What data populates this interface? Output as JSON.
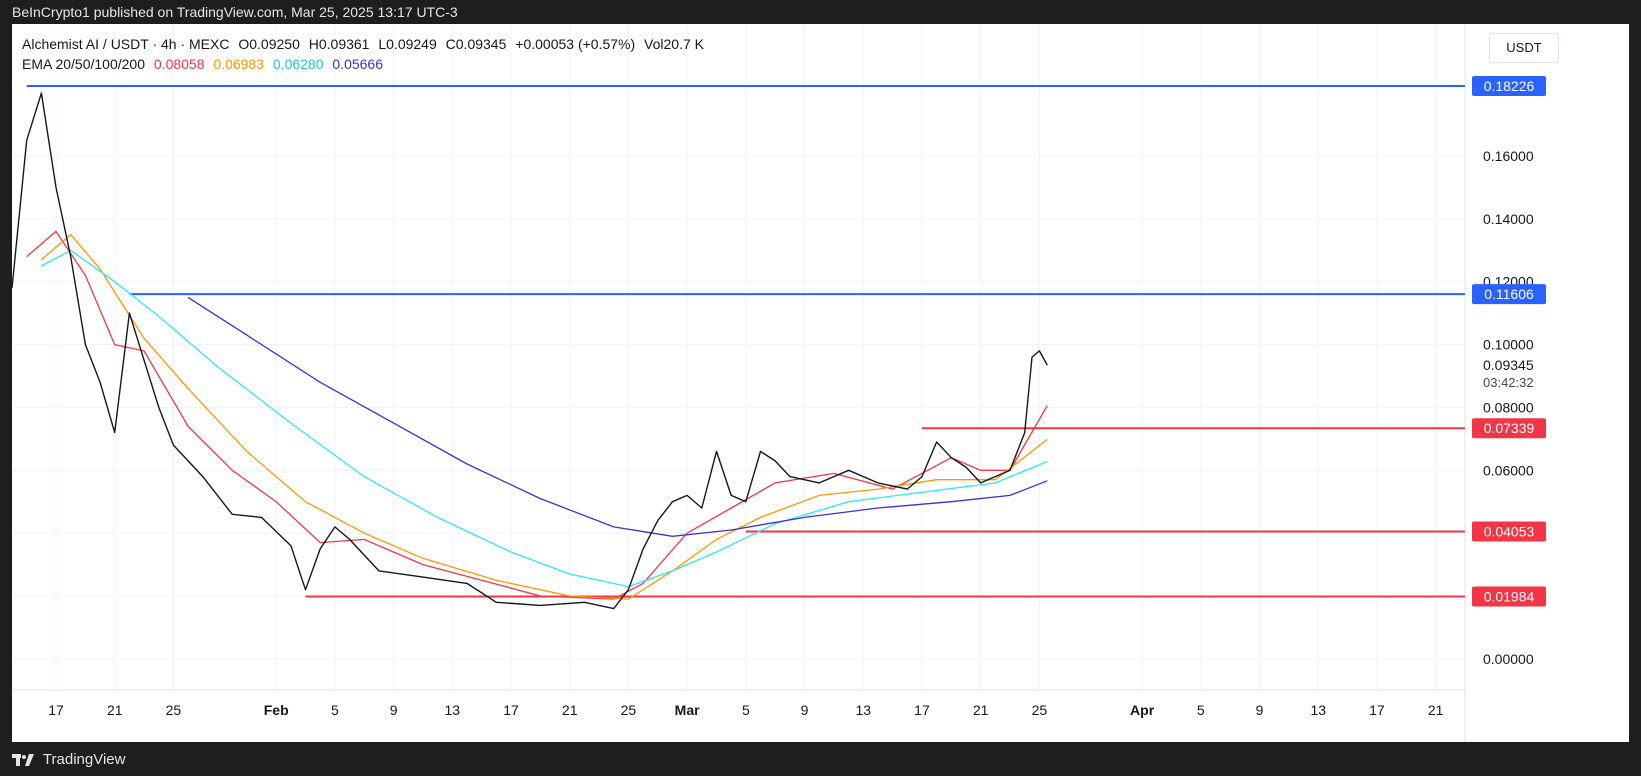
{
  "header": {
    "text": "BeInCrypto1 published on TradingView.com, Mar 25, 2025 13:17 UTC-3"
  },
  "legend": {
    "symbol": "Alchemist AI / USDT · 4h · MEXC",
    "open": "O0.09250",
    "high": "H0.09361",
    "low": "L0.09249",
    "close": "C0.09345",
    "change": "+0.00053 (+0.57%)",
    "volume": "Vol20.7 K",
    "ema_label": "EMA 20/50/100/200",
    "ema_values": [
      "0.08058",
      "0.06983",
      "0.06280",
      "0.05666"
    ]
  },
  "footer": {
    "brand": "TradingView"
  },
  "colors": {
    "ema20": "#f23645",
    "ema50": "#ff9800",
    "ema100": "#2ee8f2",
    "ema200": "#3f2fd6",
    "resistance": "#2962ff",
    "support": "#f23645",
    "candle": "#131722",
    "grid": "#f0f3fa"
  },
  "chart_data": {
    "type": "line",
    "title": "Alchemist AI / USDT · 4h · MEXC",
    "unit": "USDT",
    "xlim": [
      "2025-01-14",
      "2025-04-23"
    ],
    "ylim": [
      -0.008,
      0.188
    ],
    "y_ticks": [
      "0.00000",
      "0.02000",
      "0.04000",
      "0.06000",
      "0.08000",
      "0.10000",
      "0.12000",
      "0.14000",
      "0.16000"
    ],
    "x_ticks": [
      {
        "date": "2025-01-17",
        "label": "17"
      },
      {
        "date": "2025-01-21",
        "label": "21"
      },
      {
        "date": "2025-01-25",
        "label": "25"
      },
      {
        "date": "2025-02-01",
        "label": "Feb"
      },
      {
        "date": "2025-02-05",
        "label": "5"
      },
      {
        "date": "2025-02-09",
        "label": "9"
      },
      {
        "date": "2025-02-13",
        "label": "13"
      },
      {
        "date": "2025-02-17",
        "label": "17"
      },
      {
        "date": "2025-02-21",
        "label": "21"
      },
      {
        "date": "2025-02-25",
        "label": "25"
      },
      {
        "date": "2025-03-01",
        "label": "Mar"
      },
      {
        "date": "2025-03-05",
        "label": "5"
      },
      {
        "date": "2025-03-09",
        "label": "9"
      },
      {
        "date": "2025-03-13",
        "label": "13"
      },
      {
        "date": "2025-03-17",
        "label": "17"
      },
      {
        "date": "2025-03-21",
        "label": "21"
      },
      {
        "date": "2025-03-25",
        "label": "25"
      },
      {
        "date": "2025-04-01",
        "label": "Apr"
      },
      {
        "date": "2025-04-05",
        "label": "5"
      },
      {
        "date": "2025-04-09",
        "label": "9"
      },
      {
        "date": "2025-04-13",
        "label": "13"
      },
      {
        "date": "2025-04-17",
        "label": "17"
      },
      {
        "date": "2025-04-21",
        "label": "21"
      }
    ],
    "price": [
      [
        "2025-01-14",
        0.118
      ],
      [
        "2025-01-15",
        0.165
      ],
      [
        "2025-01-16",
        0.18
      ],
      [
        "2025-01-17",
        0.15
      ],
      [
        "2025-01-18",
        0.128
      ],
      [
        "2025-01-19",
        0.1
      ],
      [
        "2025-01-20",
        0.088
      ],
      [
        "2025-01-21",
        0.072
      ],
      [
        "2025-01-22",
        0.11
      ],
      [
        "2025-01-23",
        0.095
      ],
      [
        "2025-01-24",
        0.08
      ],
      [
        "2025-01-25",
        0.068
      ],
      [
        "2025-01-27",
        0.058
      ],
      [
        "2025-01-29",
        0.046
      ],
      [
        "2025-01-31",
        0.045
      ],
      [
        "2025-02-02",
        0.036
      ],
      [
        "2025-02-03",
        0.022
      ],
      [
        "2025-02-04",
        0.035
      ],
      [
        "2025-02-05",
        0.042
      ],
      [
        "2025-02-06",
        0.038
      ],
      [
        "2025-02-08",
        0.028
      ],
      [
        "2025-02-11",
        0.026
      ],
      [
        "2025-02-14",
        0.024
      ],
      [
        "2025-02-16",
        0.018
      ],
      [
        "2025-02-19",
        0.017
      ],
      [
        "2025-02-22",
        0.018
      ],
      [
        "2025-02-24",
        0.016
      ],
      [
        "2025-02-25",
        0.022
      ],
      [
        "2025-02-26",
        0.035
      ],
      [
        "2025-02-27",
        0.044
      ],
      [
        "2025-02-28",
        0.05
      ],
      [
        "2025-03-01",
        0.052
      ],
      [
        "2025-03-02",
        0.048
      ],
      [
        "2025-03-03",
        0.066
      ],
      [
        "2025-03-04",
        0.052
      ],
      [
        "2025-03-05",
        0.05
      ],
      [
        "2025-03-06",
        0.066
      ],
      [
        "2025-03-07",
        0.063
      ],
      [
        "2025-03-08",
        0.058
      ],
      [
        "2025-03-10",
        0.056
      ],
      [
        "2025-03-12",
        0.06
      ],
      [
        "2025-03-14",
        0.056
      ],
      [
        "2025-03-16",
        0.054
      ],
      [
        "2025-03-17",
        0.058
      ],
      [
        "2025-03-18",
        0.069
      ],
      [
        "2025-03-19",
        0.064
      ],
      [
        "2025-03-20",
        0.061
      ],
      [
        "2025-03-21",
        0.056
      ],
      [
        "2025-03-22",
        0.058
      ],
      [
        "2025-03-23",
        0.06
      ],
      [
        "2025-03-24",
        0.072
      ],
      [
        "2025-03-24T12",
        0.096
      ],
      [
        "2025-03-25",
        0.098
      ],
      [
        "2025-03-25T13",
        0.09345
      ]
    ],
    "series": [
      {
        "name": "EMA 20",
        "color": "#f23645",
        "values": [
          [
            "2025-01-15",
            0.128
          ],
          [
            "2025-01-17",
            0.136
          ],
          [
            "2025-01-19",
            0.122
          ],
          [
            "2025-01-21",
            0.1
          ],
          [
            "2025-01-23",
            0.098
          ],
          [
            "2025-01-26",
            0.074
          ],
          [
            "2025-01-29",
            0.06
          ],
          [
            "2025-02-01",
            0.05
          ],
          [
            "2025-02-04",
            0.037
          ],
          [
            "2025-02-07",
            0.038
          ],
          [
            "2025-02-11",
            0.03
          ],
          [
            "2025-02-15",
            0.025
          ],
          [
            "2025-02-19",
            0.02
          ],
          [
            "2025-02-24",
            0.019
          ],
          [
            "2025-02-26",
            0.024
          ],
          [
            "2025-03-01",
            0.04
          ],
          [
            "2025-03-04",
            0.048
          ],
          [
            "2025-03-07",
            0.056
          ],
          [
            "2025-03-11",
            0.059
          ],
          [
            "2025-03-15",
            0.054
          ],
          [
            "2025-03-19",
            0.064
          ],
          [
            "2025-03-21",
            0.06
          ],
          [
            "2025-03-23",
            0.06
          ],
          [
            "2025-03-25T13",
            0.08058
          ]
        ]
      },
      {
        "name": "EMA 50",
        "color": "#ff9800",
        "values": [
          [
            "2025-01-16",
            0.127
          ],
          [
            "2025-01-18",
            0.135
          ],
          [
            "2025-01-20",
            0.124
          ],
          [
            "2025-01-23",
            0.102
          ],
          [
            "2025-01-26",
            0.086
          ],
          [
            "2025-01-30",
            0.066
          ],
          [
            "2025-02-03",
            0.05
          ],
          [
            "2025-02-07",
            0.04
          ],
          [
            "2025-02-11",
            0.032
          ],
          [
            "2025-02-16",
            0.025
          ],
          [
            "2025-02-21",
            0.02
          ],
          [
            "2025-02-25",
            0.019
          ],
          [
            "2025-02-28",
            0.028
          ],
          [
            "2025-03-03",
            0.038
          ],
          [
            "2025-03-06",
            0.045
          ],
          [
            "2025-03-10",
            0.052
          ],
          [
            "2025-03-14",
            0.054
          ],
          [
            "2025-03-18",
            0.057
          ],
          [
            "2025-03-22",
            0.057
          ],
          [
            "2025-03-25T13",
            0.06983
          ]
        ]
      },
      {
        "name": "EMA 100",
        "color": "#2ee8f2",
        "values": [
          [
            "2025-01-16",
            0.125
          ],
          [
            "2025-01-18",
            0.13
          ],
          [
            "2025-01-21",
            0.12
          ],
          [
            "2025-01-24",
            0.109
          ],
          [
            "2025-01-28",
            0.093
          ],
          [
            "2025-02-02",
            0.075
          ],
          [
            "2025-02-07",
            0.058
          ],
          [
            "2025-02-12",
            0.045
          ],
          [
            "2025-02-17",
            0.034
          ],
          [
            "2025-02-21",
            0.027
          ],
          [
            "2025-02-25",
            0.023
          ],
          [
            "2025-02-28",
            0.028
          ],
          [
            "2025-03-03",
            0.034
          ],
          [
            "2025-03-07",
            0.043
          ],
          [
            "2025-03-12",
            0.05
          ],
          [
            "2025-03-17",
            0.053
          ],
          [
            "2025-03-22",
            0.056
          ],
          [
            "2025-03-25T13",
            0.0628
          ]
        ]
      },
      {
        "name": "EMA 200",
        "color": "#3f2fd6",
        "values": [
          [
            "2025-01-26",
            0.115
          ],
          [
            "2025-01-30",
            0.103
          ],
          [
            "2025-02-04",
            0.088
          ],
          [
            "2025-02-09",
            0.075
          ],
          [
            "2025-02-14",
            0.062
          ],
          [
            "2025-02-19",
            0.051
          ],
          [
            "2025-02-24",
            0.042
          ],
          [
            "2025-02-28",
            0.039
          ],
          [
            "2025-03-04",
            0.041
          ],
          [
            "2025-03-09",
            0.045
          ],
          [
            "2025-03-14",
            0.048
          ],
          [
            "2025-03-19",
            0.05
          ],
          [
            "2025-03-23",
            0.052
          ],
          [
            "2025-03-25T13",
            0.05666
          ]
        ]
      }
    ],
    "levels": [
      {
        "kind": "resistance",
        "value": 0.18226,
        "label": "0.18226",
        "from": "2025-01-15"
      },
      {
        "kind": "resistance",
        "value": 0.11606,
        "label": "0.11606",
        "from": "2025-01-22"
      },
      {
        "kind": "support",
        "value": 0.07339,
        "label": "0.07339",
        "from": "2025-03-17"
      },
      {
        "kind": "support",
        "value": 0.04053,
        "label": "0.04053",
        "from": "2025-03-05"
      },
      {
        "kind": "support",
        "value": 0.01984,
        "label": "0.01984",
        "from": "2025-02-03"
      }
    ],
    "last_price": {
      "value": 0.09345,
      "label": "0.09345",
      "countdown": "03:42:32"
    }
  }
}
